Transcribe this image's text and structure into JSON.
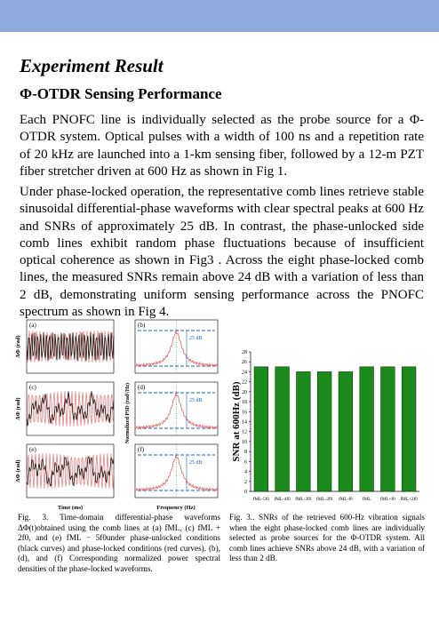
{
  "header": {
    "title": "Experiment Result"
  },
  "section": {
    "title": "Φ-OTDR Sensing Performance",
    "paragraphs": [
      "Each PNOFC line is individually selected as the probe source for a Φ-OTDR system. Optical pulses with a width of 100 ns and a repetition rate of 20 kHz are launched into a 1-km sensing fiber, followed by a 12-m PZT fiber stretcher driven at 600 Hz as shown in Fig 1.",
      "Under phase-locked operation, the representative comb lines retrieve stable sinusoidal differential-phase waveforms with clear spectral peaks at 600 Hz and SNRs of approximately 25 dB. In contrast, the phase-unlocked side comb lines exhibit random phase fluctuations because of insufficient optical coherence as shown in Fig3 . Across the eight phase-locked comb lines, the measured SNRs remain above 24 dB with a variation of less than 2 dB, demonstrating uniform sensing performance across the PNOFC spectrum as shown in Fig 4."
    ]
  },
  "figure3": {
    "panels": [
      "(a)",
      "(b)",
      "(c)",
      "(d)",
      "(e)",
      "(f)"
    ],
    "y_label_time": "ΔΦ (rad)",
    "y_label_psd": "Normalized PSD (rad²/Hz)",
    "x_label_time": "Time (ms)",
    "x_label_psd": "Frequency (Hz)",
    "annotation": "25 dB",
    "caption": "Fig. 3. Time-domain differential-phase waveforms ΔΦ(t)obtained using the comb lines at (a) fML, (c) fML + 2f0, and (e) fML − 5f0under phase-unlocked conditions (black curves) and phase-locked conditions (red curves). (b), (d), and (f) Corresponding normalized power spectral densities of the phase-locked waveforms."
  },
  "chart_data": {
    "type": "bar",
    "y_label": "SNR at 600Hz (dB)",
    "categories": [
      "fML-5f0",
      "fML-4f0",
      "fML-3f0",
      "fML-2f0",
      "fML-f0",
      "fML",
      "fML+f0",
      "fML+2f0"
    ],
    "values": [
      25,
      25,
      24,
      24,
      24,
      25,
      25,
      25
    ],
    "color": "#1a8a1a",
    "ylim": [
      0,
      28
    ],
    "yticks": [
      0,
      2,
      4,
      6,
      8,
      10,
      12,
      14,
      16,
      18,
      20,
      22,
      24,
      26,
      28
    ]
  },
  "figure4": {
    "caption": "Fig. 3.. SNRs of the retrieved 600-Hz vibration signals when the eight phase-locked comb lines are individually selected as probe sources for the Φ-OTDR system. All comb lines achieve SNRs above 24 dB, with a variation of less than 2 dB."
  }
}
